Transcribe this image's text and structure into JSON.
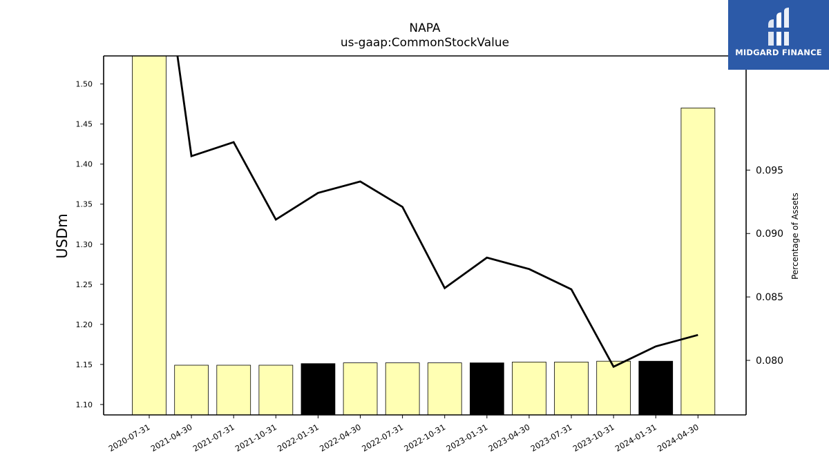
{
  "chart_data": {
    "type": "bar",
    "title": "NAPA",
    "subtitle": "us-gaap:CommonStockValue",
    "ylabel": "USDm",
    "y2label": "Percentage of Assets",
    "categories": [
      "2020-07-31",
      "2021-04-30",
      "2021-07-31",
      "2021-10-31",
      "2022-01-31",
      "2022-04-30",
      "2022-07-31",
      "2022-10-31",
      "2023-01-31",
      "2023-04-30",
      "2023-07-31",
      "2023-10-31",
      "2024-01-31",
      "2024-04-30"
    ],
    "bar_series": {
      "values": [
        1.6,
        1.149,
        1.149,
        1.149,
        1.151,
        1.152,
        1.152,
        1.152,
        1.152,
        1.153,
        1.153,
        1.154,
        1.154,
        1.47
      ],
      "colors": [
        "#ffffb3",
        "#ffffb3",
        "#ffffb3",
        "#ffffb3",
        "#000000",
        "#ffffb3",
        "#ffffb3",
        "#ffffb3",
        "#000000",
        "#ffffb3",
        "#ffffb3",
        "#ffffb3",
        "#000000",
        "#ffffb3"
      ]
    },
    "line_series": {
      "values": [
        0.12,
        0.0961,
        0.0972,
        0.0911,
        0.0932,
        0.0941,
        0.0921,
        0.0857,
        0.0881,
        0.0872,
        0.0856,
        0.0795,
        0.0811,
        0.082
      ],
      "color": "#000000"
    },
    "ylim": [
      1.087,
      1.535
    ],
    "yticks": [
      "1.10",
      "1.15",
      "1.20",
      "1.25",
      "1.30",
      "1.35",
      "1.40",
      "1.45",
      "1.50"
    ],
    "y2lim": [
      0.0757,
      0.104
    ],
    "y2ticks": [
      "0.080",
      "0.085",
      "0.090",
      "0.095"
    ],
    "grid": false
  },
  "logo": {
    "text": "MIDGARD FINANCE",
    "bg_color": "#2c5aa8"
  }
}
